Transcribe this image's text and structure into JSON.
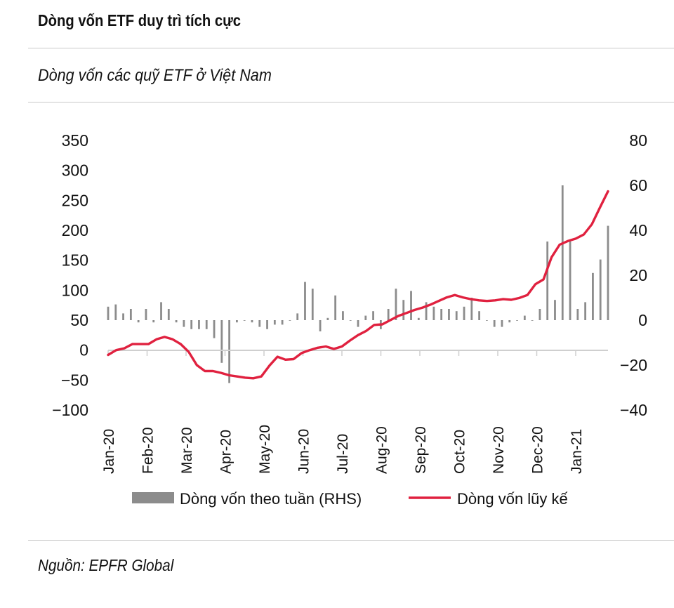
{
  "header": {
    "title": "Dòng vốn ETF duy trì tích cực",
    "subtitle": "Dòng vốn các quỹ ETF ở Việt Nam"
  },
  "footer": {
    "source": "Nguồn: EPFR Global"
  },
  "colors": {
    "line": "#e0213f",
    "bars": "#8c8c8c",
    "rule": "#c9c9c9",
    "axis": "#cfcfcf"
  },
  "chart_data": {
    "type": "bar+line",
    "title": "Dòng vốn các quỹ ETF ở Việt Nam",
    "x_labels": [
      "Jan-20",
      "Feb-20",
      "Mar-20",
      "Apr-20",
      "May-20",
      "Jun-20",
      "Jul-20",
      "Aug-20",
      "Sep-20",
      "Oct-20",
      "Nov-20",
      "Dec-20",
      "Jan-21"
    ],
    "left_axis": {
      "ticks": [
        350,
        300,
        250,
        200,
        150,
        100,
        50,
        0,
        -50,
        -100
      ],
      "ylim": [
        -100,
        350
      ]
    },
    "right_axis": {
      "ticks": [
        80,
        60,
        40,
        20,
        0,
        -20,
        -40
      ],
      "ylim": [
        -40,
        80
      ]
    },
    "legend": [
      {
        "name": "Dòng vốn theo tuần (RHS)",
        "kind": "bar"
      },
      {
        "name": "Dòng vốn lũy kế",
        "kind": "line"
      }
    ],
    "series": [
      {
        "name": "Dòng vốn theo tuần (RHS)",
        "axis": "right",
        "type": "bar",
        "values": [
          6,
          7,
          3,
          5,
          -1,
          5,
          -1,
          8,
          5,
          -1,
          -3,
          -4,
          -4,
          -4,
          -8,
          -19,
          -28,
          -1,
          0,
          -1,
          -3,
          -4,
          -2,
          -2,
          0,
          3,
          17,
          14,
          -5,
          1,
          11,
          4,
          0,
          -3,
          2,
          4,
          -4,
          5,
          14,
          9,
          13,
          1,
          8,
          6,
          5,
          5,
          4,
          6,
          10,
          4,
          0,
          -3,
          -3,
          -1,
          0,
          2,
          0,
          5,
          35,
          9,
          60,
          35,
          5,
          8,
          21,
          27,
          42
        ],
        "extra_weeks_after_last_tick": 8
      },
      {
        "name": "Dòng vốn lũy kế",
        "axis": "left",
        "type": "line",
        "values": [
          -8,
          0,
          3,
          10,
          10,
          10,
          18,
          22,
          18,
          10,
          -3,
          -25,
          -35,
          -35,
          -38,
          -42,
          -44,
          -46,
          -47,
          -44,
          -26,
          -11,
          -16,
          -15,
          -5,
          0,
          4,
          6,
          2,
          6,
          16,
          25,
          32,
          42,
          43,
          50,
          57,
          62,
          67,
          71,
          76,
          82,
          88,
          92,
          88,
          85,
          83,
          82,
          83,
          85,
          84,
          87,
          92,
          110,
          118,
          155,
          176,
          182,
          186,
          193,
          210,
          238,
          265
        ]
      }
    ]
  }
}
